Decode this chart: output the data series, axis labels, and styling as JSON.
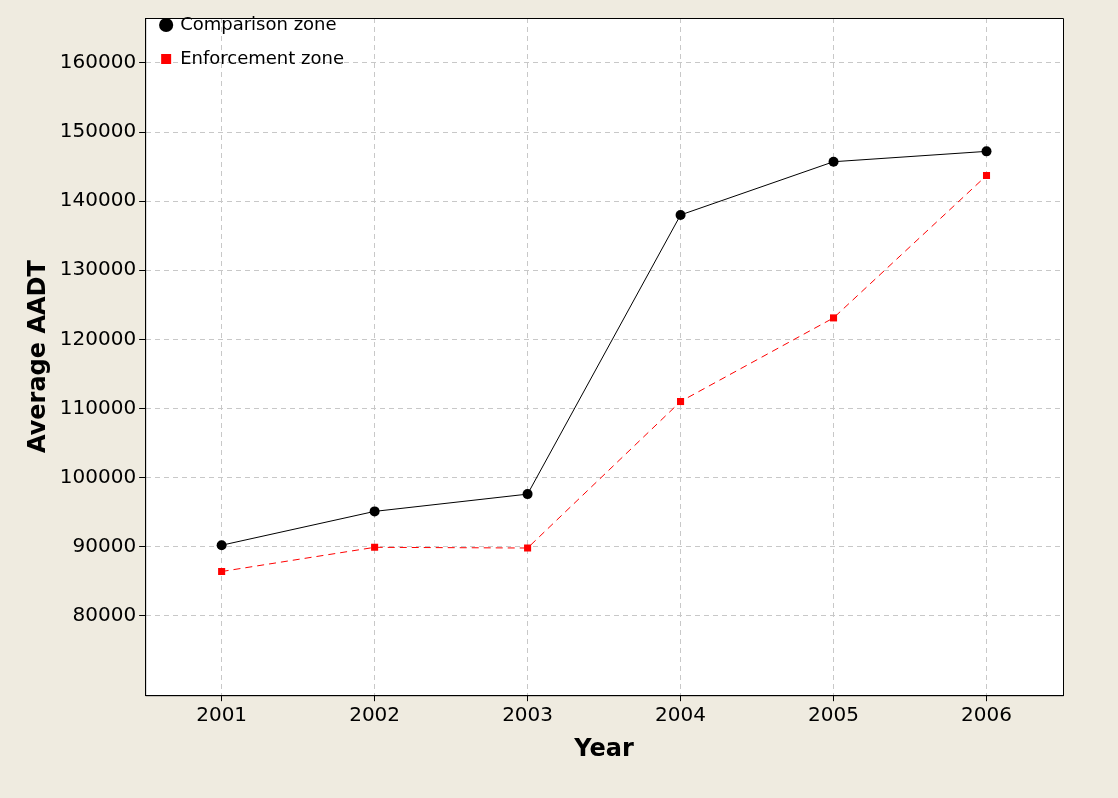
{
  "chart_data": {
    "type": "line",
    "xlabel": "Year",
    "ylabel": "Average AADT",
    "categories": [
      "2001",
      "2002",
      "2003",
      "2004",
      "2005",
      "2006"
    ],
    "series": [
      {
        "name": "Comparison zone",
        "color": "#000000",
        "marker": "circle",
        "line_style": "solid",
        "values": [
          90200,
          95100,
          97600,
          138000,
          145700,
          147200
        ]
      },
      {
        "name": "Enforcement zone",
        "color": "#ff0000",
        "marker": "square",
        "line_style": "dashed",
        "values": [
          86400,
          89900,
          89800,
          111000,
          123100,
          143700
        ]
      }
    ],
    "ylim": [
      68500,
      166500
    ],
    "yticks": [
      80000,
      90000,
      100000,
      110000,
      120000,
      130000,
      140000,
      150000,
      160000
    ],
    "grid": true,
    "legend": "top left"
  }
}
